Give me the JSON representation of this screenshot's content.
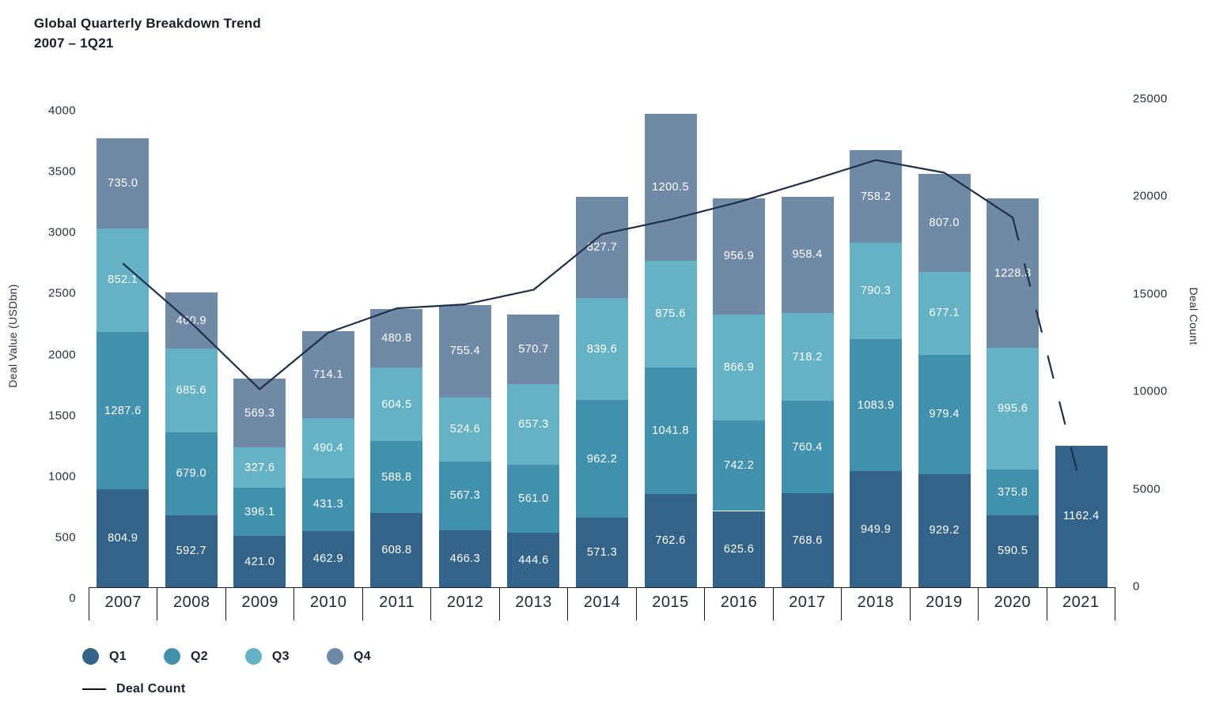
{
  "title": {
    "line1": "Global Quarterly Breakdown Trend",
    "line2": "2007 – 1Q21"
  },
  "axes": {
    "left": {
      "label": "Deal Value (USDbn)",
      "ticks": [
        0,
        500,
        1000,
        1500,
        2000,
        2500,
        3000,
        3500,
        4000
      ],
      "max": 4000
    },
    "right": {
      "label": "Deal Count",
      "ticks": [
        0,
        5000,
        10000,
        15000,
        20000,
        25000
      ],
      "max": 25000
    }
  },
  "legend": {
    "quarters": [
      {
        "label": "Q1",
        "color": "#346389"
      },
      {
        "label": "Q2",
        "color": "#4190ae"
      },
      {
        "label": "Q3",
        "color": "#66b2c5"
      },
      {
        "label": "Q4",
        "color": "#7089a6"
      }
    ],
    "line_label": "Deal Count"
  },
  "chart_data": {
    "type": "bar",
    "stacked": true,
    "title": "Global Quarterly Breakdown Trend 2007 – 1Q21",
    "xlabel": "",
    "ylabel": "Deal Value (USDbn)",
    "ylabel_right": "Deal Count",
    "ylim_left": [
      0,
      4000
    ],
    "ylim_right": [
      0,
      25000
    ],
    "grid": false,
    "legend_position": "bottom-left",
    "categories": [
      "2007",
      "2008",
      "2009",
      "2010",
      "2011",
      "2012",
      "2013",
      "2014",
      "2015",
      "2016",
      "2017",
      "2018",
      "2019",
      "2020",
      "2021"
    ],
    "series": [
      {
        "name": "Q1",
        "color": "#346389",
        "values": [
          804.9,
          592.7,
          421.0,
          462.9,
          608.8,
          466.3,
          444.6,
          571.3,
          762.6,
          625.6,
          768.6,
          949.9,
          929.2,
          590.5,
          1162.4
        ]
      },
      {
        "name": "Q2",
        "color": "#4190ae",
        "values": [
          1287.6,
          679.0,
          396.1,
          431.3,
          588.8,
          567.3,
          561.0,
          962.2,
          1041.8,
          742.2,
          760.4,
          1083.9,
          979.4,
          375.8,
          null
        ]
      },
      {
        "name": "Q3",
        "color": "#66b2c5",
        "values": [
          852.1,
          685.6,
          327.6,
          490.4,
          604.5,
          524.6,
          657.3,
          839.6,
          875.6,
          866.9,
          718.2,
          790.3,
          677.1,
          995.6,
          null
        ]
      },
      {
        "name": "Q4",
        "color": "#7089a6",
        "values": [
          735.0,
          460.9,
          569.3,
          714.1,
          480.8,
          755.4,
          570.7,
          827.7,
          1200.5,
          956.9,
          958.4,
          758.2,
          807.0,
          1228.3,
          null
        ]
      }
    ],
    "line_series": {
      "name": "Deal Count",
      "axis": "right",
      "color": "#1e3048",
      "values": [
        16600,
        13550,
        10150,
        13050,
        14300,
        14500,
        15250,
        18100,
        18850,
        19750,
        20800,
        21900,
        21250,
        18950,
        5100
      ],
      "dashed_from_index": 13
    }
  }
}
